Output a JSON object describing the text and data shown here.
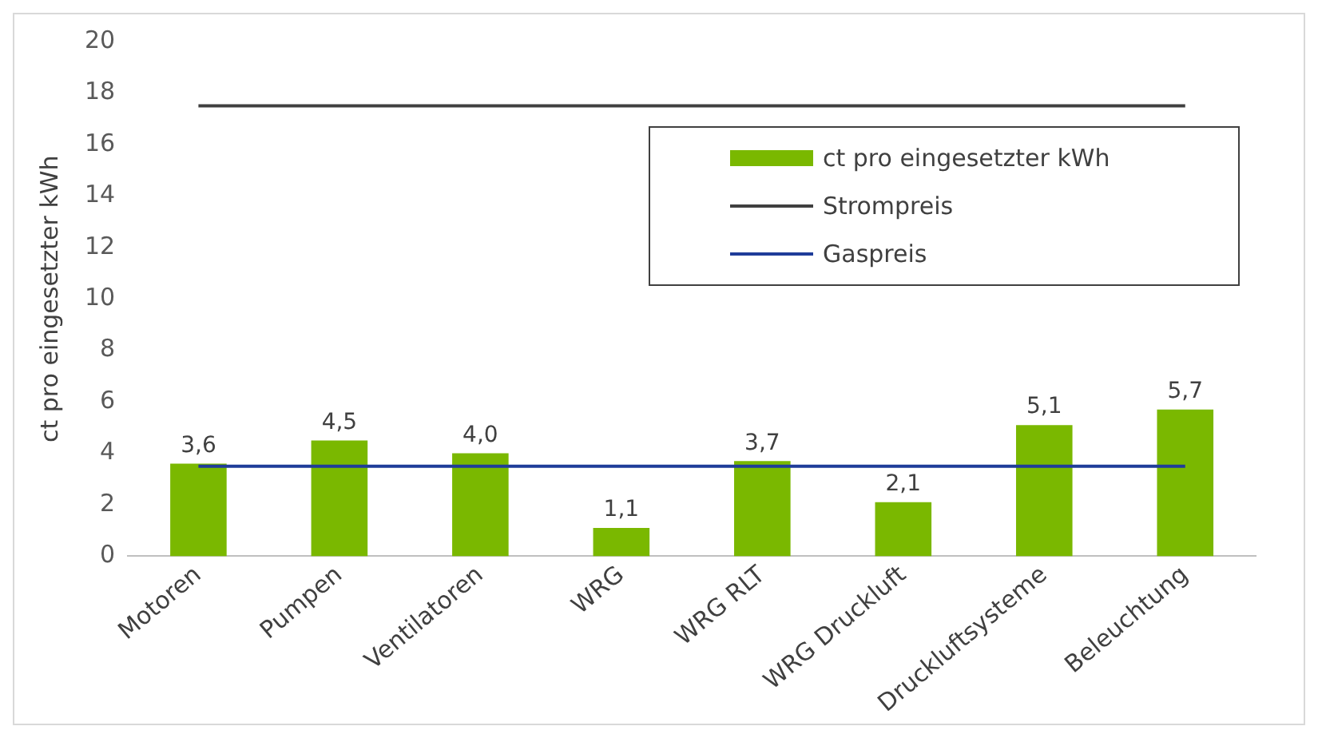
{
  "chart_data": {
    "type": "bar",
    "ylabel": "ct pro eingesetzter kWh",
    "categories": [
      "Motoren",
      "Pumpen",
      "Ventilatoren",
      "WRG",
      "WRG RLT",
      "WRG Druckluft",
      "Druckluftsysteme",
      "Beleuchtung"
    ],
    "series": [
      {
        "name": "ct pro eingesetzter kWh",
        "color": "#7ab800",
        "values": [
          3.6,
          4.5,
          4.0,
          1.1,
          3.7,
          2.1,
          5.1,
          5.7
        ],
        "value_labels": [
          "3,6",
          "4,5",
          "4,0",
          "1,1",
          "3,7",
          "2,1",
          "5,1",
          "5,7"
        ]
      },
      {
        "name": "Strompreis",
        "type": "line",
        "color": "#404040",
        "values": [
          17.5,
          17.5,
          17.5,
          17.5,
          17.5,
          17.5,
          17.5,
          17.5
        ]
      },
      {
        "name": "Gaspreis",
        "type": "line",
        "color": "#1f3c99",
        "values": [
          3.5,
          3.5,
          3.5,
          3.5,
          3.5,
          3.5,
          3.5,
          3.5
        ]
      }
    ],
    "ylim": [
      0,
      20
    ],
    "yticks": [
      0,
      2,
      4,
      6,
      8,
      10,
      12,
      14,
      16,
      18,
      20
    ],
    "grid": false,
    "legend": "top right",
    "marker": "none"
  }
}
